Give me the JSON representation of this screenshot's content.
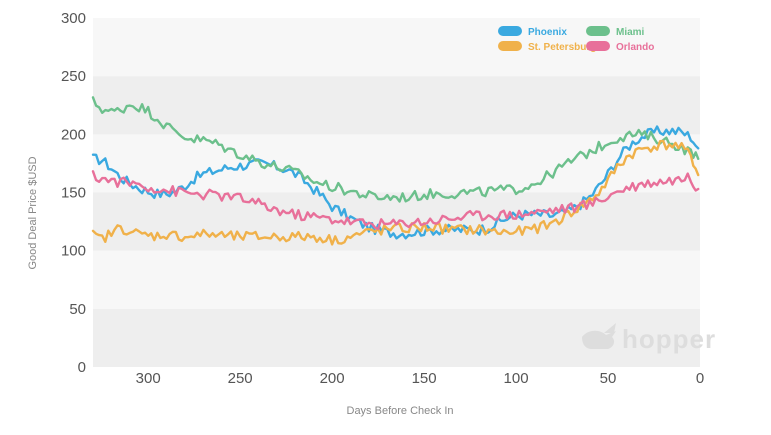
{
  "watermark": "hopper",
  "chart_data": {
    "type": "line",
    "xlabel": "Days Before Check In",
    "ylabel": "Good Deal Price $USD",
    "xlim": [
      330,
      0
    ],
    "ylim": [
      0,
      300
    ],
    "xticks": [
      300,
      250,
      200,
      150,
      100,
      50,
      0
    ],
    "yticks": [
      0,
      50,
      100,
      150,
      200,
      250,
      300
    ],
    "grid": "alternating horizontal bands",
    "legend_position": "top-right",
    "series": [
      {
        "name": "Phoenix",
        "color": "#3aa9e0",
        "points": [
          [
            330,
            179
          ],
          [
            325,
            178
          ],
          [
            320,
            171
          ],
          [
            315,
            163
          ],
          [
            310,
            158
          ],
          [
            305,
            154
          ],
          [
            300,
            151
          ],
          [
            295,
            149
          ],
          [
            290,
            149
          ],
          [
            285,
            151
          ],
          [
            280,
            156
          ],
          [
            275,
            162
          ],
          [
            270,
            166
          ],
          [
            265,
            168
          ],
          [
            260,
            170
          ],
          [
            255,
            172
          ],
          [
            250,
            173
          ],
          [
            245,
            174
          ],
          [
            240,
            175
          ],
          [
            235,
            174
          ],
          [
            230,
            172
          ],
          [
            225,
            170
          ],
          [
            220,
            166
          ],
          [
            215,
            160
          ],
          [
            210,
            153
          ],
          [
            205,
            146
          ],
          [
            200,
            138
          ],
          [
            195,
            133
          ],
          [
            190,
            128
          ],
          [
            185,
            124
          ],
          [
            180,
            120
          ],
          [
            175,
            118
          ],
          [
            170,
            116
          ],
          [
            165,
            115
          ],
          [
            160,
            115
          ],
          [
            155,
            116
          ],
          [
            150,
            117
          ],
          [
            145,
            118
          ],
          [
            140,
            118
          ],
          [
            135,
            118
          ],
          [
            130,
            118
          ],
          [
            125,
            118
          ],
          [
            120,
            118
          ],
          [
            115,
            120
          ],
          [
            110,
            124
          ],
          [
            105,
            128
          ],
          [
            100,
            130
          ],
          [
            95,
            131
          ],
          [
            90,
            131
          ],
          [
            85,
            131
          ],
          [
            80,
            130
          ],
          [
            75,
            132
          ],
          [
            70,
            135
          ],
          [
            65,
            140
          ],
          [
            60,
            146
          ],
          [
            55,
            155
          ],
          [
            50,
            166
          ],
          [
            45,
            178
          ],
          [
            40,
            188
          ],
          [
            35,
            195
          ],
          [
            30,
            199
          ],
          [
            25,
            202
          ],
          [
            20,
            203
          ],
          [
            15,
            203
          ],
          [
            10,
            202
          ],
          [
            5,
            198
          ],
          [
            1,
            188
          ]
        ]
      },
      {
        "name": "Miami",
        "color": "#6cc08c",
        "points": [
          [
            330,
            228
          ],
          [
            325,
            222
          ],
          [
            320,
            219
          ],
          [
            315,
            221
          ],
          [
            310,
            226
          ],
          [
            305,
            224
          ],
          [
            300,
            220
          ],
          [
            295,
            214
          ],
          [
            290,
            207
          ],
          [
            285,
            202
          ],
          [
            280,
            198
          ],
          [
            275,
            196
          ],
          [
            270,
            195
          ],
          [
            265,
            193
          ],
          [
            260,
            190
          ],
          [
            255,
            186
          ],
          [
            250,
            183
          ],
          [
            245,
            180
          ],
          [
            240,
            177
          ],
          [
            235,
            174
          ],
          [
            230,
            172
          ],
          [
            225,
            170
          ],
          [
            220,
            167
          ],
          [
            215,
            164
          ],
          [
            210,
            160
          ],
          [
            205,
            157
          ],
          [
            200,
            155
          ],
          [
            195,
            153
          ],
          [
            190,
            151
          ],
          [
            185,
            149
          ],
          [
            180,
            147
          ],
          [
            175,
            146
          ],
          [
            170,
            146
          ],
          [
            165,
            146
          ],
          [
            160,
            146
          ],
          [
            155,
            147
          ],
          [
            150,
            148
          ],
          [
            145,
            149
          ],
          [
            140,
            149
          ],
          [
            135,
            149
          ],
          [
            130,
            150
          ],
          [
            125,
            150
          ],
          [
            120,
            150
          ],
          [
            115,
            151
          ],
          [
            110,
            152
          ],
          [
            105,
            152
          ],
          [
            100,
            153
          ],
          [
            95,
            155
          ],
          [
            90,
            158
          ],
          [
            85,
            162
          ],
          [
            80,
            167
          ],
          [
            75,
            172
          ],
          [
            70,
            177
          ],
          [
            65,
            181
          ],
          [
            60,
            185
          ],
          [
            55,
            189
          ],
          [
            50,
            193
          ],
          [
            45,
            197
          ],
          [
            40,
            199
          ],
          [
            35,
            200
          ],
          [
            30,
            199
          ],
          [
            25,
            197
          ],
          [
            20,
            195
          ],
          [
            15,
            192
          ],
          [
            10,
            189
          ],
          [
            5,
            184
          ],
          [
            1,
            179
          ]
        ]
      },
      {
        "name": "St. Petersburg",
        "color": "#f0b14a",
        "points": [
          [
            330,
            113
          ],
          [
            325,
            110
          ],
          [
            320,
            115
          ],
          [
            315,
            120
          ],
          [
            310,
            117
          ],
          [
            305,
            114
          ],
          [
            300,
            113
          ],
          [
            295,
            113
          ],
          [
            290,
            114
          ],
          [
            285,
            113
          ],
          [
            280,
            112
          ],
          [
            275,
            113
          ],
          [
            270,
            114
          ],
          [
            265,
            114
          ],
          [
            260,
            113
          ],
          [
            255,
            112
          ],
          [
            250,
            112
          ],
          [
            245,
            112
          ],
          [
            240,
            112
          ],
          [
            235,
            112
          ],
          [
            230,
            112
          ],
          [
            225,
            112
          ],
          [
            220,
            112
          ],
          [
            215,
            112
          ],
          [
            210,
            112
          ],
          [
            205,
            111
          ],
          [
            200,
            109
          ],
          [
            195,
            110
          ],
          [
            190,
            112
          ],
          [
            185,
            114
          ],
          [
            180,
            116
          ],
          [
            175,
            117
          ],
          [
            170,
            118
          ],
          [
            165,
            119
          ],
          [
            160,
            119
          ],
          [
            155,
            120
          ],
          [
            150,
            120
          ],
          [
            145,
            120
          ],
          [
            140,
            119
          ],
          [
            135,
            118
          ],
          [
            130,
            118
          ],
          [
            125,
            118
          ],
          [
            120,
            118
          ],
          [
            115,
            117
          ],
          [
            110,
            116
          ],
          [
            105,
            116
          ],
          [
            100,
            116
          ],
          [
            95,
            117
          ],
          [
            90,
            119
          ],
          [
            85,
            121
          ],
          [
            80,
            124
          ],
          [
            75,
            128
          ],
          [
            70,
            133
          ],
          [
            65,
            138
          ],
          [
            60,
            143
          ],
          [
            55,
            150
          ],
          [
            50,
            160
          ],
          [
            45,
            172
          ],
          [
            40,
            180
          ],
          [
            35,
            185
          ],
          [
            30,
            188
          ],
          [
            25,
            190
          ],
          [
            20,
            191
          ],
          [
            15,
            191
          ],
          [
            10,
            188
          ],
          [
            5,
            182
          ],
          [
            1,
            165
          ]
        ]
      },
      {
        "name": "Orlando",
        "color": "#e8709a",
        "points": [
          [
            330,
            164
          ],
          [
            325,
            162
          ],
          [
            320,
            160
          ],
          [
            315,
            159
          ],
          [
            310,
            158
          ],
          [
            305,
            157
          ],
          [
            300,
            155
          ],
          [
            295,
            153
          ],
          [
            290,
            152
          ],
          [
            285,
            151
          ],
          [
            280,
            150
          ],
          [
            275,
            149
          ],
          [
            270,
            148
          ],
          [
            265,
            148
          ],
          [
            260,
            147
          ],
          [
            255,
            146
          ],
          [
            250,
            145
          ],
          [
            245,
            143
          ],
          [
            240,
            140
          ],
          [
            235,
            137
          ],
          [
            230,
            135
          ],
          [
            225,
            133
          ],
          [
            220,
            131
          ],
          [
            215,
            130
          ],
          [
            210,
            129
          ],
          [
            205,
            128
          ],
          [
            200,
            127
          ],
          [
            195,
            126
          ],
          [
            190,
            125
          ],
          [
            185,
            124
          ],
          [
            180,
            123
          ],
          [
            175,
            123
          ],
          [
            170,
            123
          ],
          [
            165,
            123
          ],
          [
            160,
            124
          ],
          [
            155,
            125
          ],
          [
            150,
            125
          ],
          [
            145,
            126
          ],
          [
            140,
            127
          ],
          [
            135,
            128
          ],
          [
            130,
            129
          ],
          [
            125,
            130
          ],
          [
            120,
            130
          ],
          [
            115,
            131
          ],
          [
            110,
            131
          ],
          [
            105,
            131
          ],
          [
            100,
            131
          ],
          [
            95,
            132
          ],
          [
            90,
            133
          ],
          [
            85,
            134
          ],
          [
            80,
            135
          ],
          [
            75,
            136
          ],
          [
            70,
            137
          ],
          [
            65,
            138
          ],
          [
            60,
            140
          ],
          [
            55,
            143
          ],
          [
            50,
            147
          ],
          [
            45,
            151
          ],
          [
            40,
            154
          ],
          [
            35,
            156
          ],
          [
            30,
            158
          ],
          [
            25,
            159
          ],
          [
            20,
            160
          ],
          [
            15,
            161
          ],
          [
            10,
            162
          ],
          [
            5,
            162
          ],
          [
            1,
            153
          ]
        ]
      }
    ]
  }
}
